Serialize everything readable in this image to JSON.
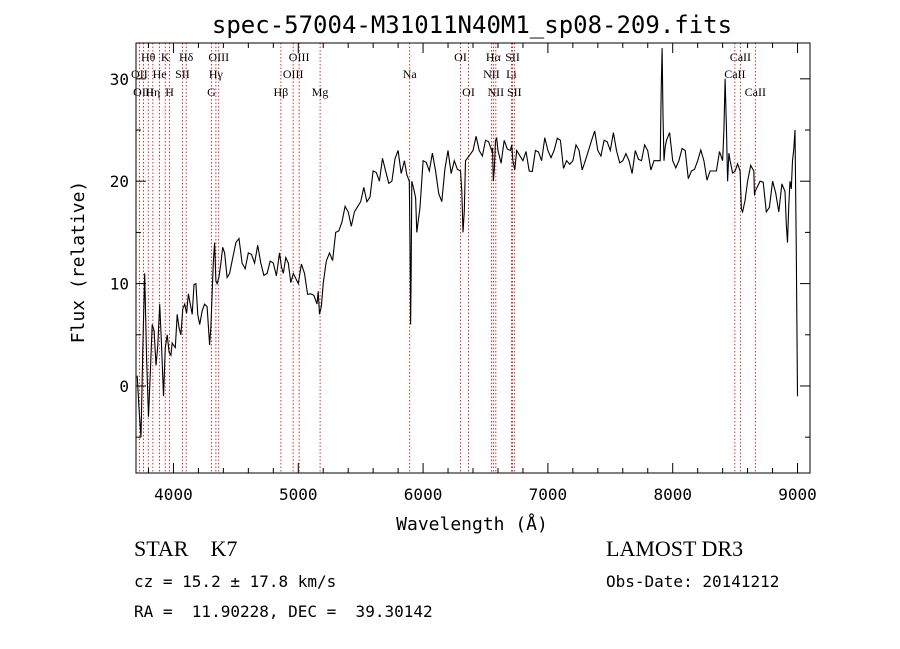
{
  "chart_data": {
    "type": "line",
    "title": "spec-57004-M31011N40M1_sp08-209.fits",
    "xlabel": "Wavelength (Å)",
    "ylabel": "Flux (relative)",
    "xlim": [
      3700,
      9100
    ],
    "ylim": [
      -8.5,
      33.5
    ],
    "x_ticks": [
      4000,
      5000,
      6000,
      7000,
      8000,
      9000
    ],
    "y_ticks": [
      0,
      10,
      20,
      30
    ],
    "grid": false,
    "line_color": "#000000",
    "marker_color": "#cc0000",
    "spectrum": {
      "x": [
        3710,
        3740,
        3770,
        3800,
        3830,
        3860,
        3890,
        3920,
        3950,
        3980,
        4000,
        4030,
        4060,
        4090,
        4120,
        4150,
        4180,
        4210,
        4250,
        4290,
        4310,
        4330,
        4350,
        4380,
        4410,
        4450,
        4500,
        4550,
        4600,
        4650,
        4700,
        4750,
        4800,
        4850,
        4880,
        4920,
        4960,
        5000,
        5050,
        5100,
        5150,
        5170,
        5200,
        5250,
        5300,
        5350,
        5400,
        5450,
        5500,
        5550,
        5600,
        5650,
        5700,
        5750,
        5800,
        5850,
        5890,
        5900,
        5910,
        5930,
        5950,
        6000,
        6050,
        6100,
        6150,
        6200,
        6250,
        6300,
        6320,
        6340,
        6400,
        6450,
        6500,
        6550,
        6563,
        6580,
        6600,
        6650,
        6700,
        6720,
        6750,
        6800,
        6850,
        6900,
        6950,
        7000,
        7050,
        7100,
        7150,
        7200,
        7250,
        7300,
        7350,
        7400,
        7450,
        7500,
        7550,
        7600,
        7650,
        7700,
        7750,
        7800,
        7850,
        7900,
        7915,
        7930,
        7950,
        8000,
        8050,
        8100,
        8150,
        8200,
        8250,
        8300,
        8350,
        8400,
        8420,
        8440,
        8460,
        8500,
        8540,
        8560,
        8600,
        8650,
        8660,
        8700,
        8750,
        8800,
        8850,
        8900,
        8920,
        8940,
        8960,
        8980,
        9000
      ],
      "y": [
        1,
        -5,
        11,
        -3,
        6,
        2,
        8,
        -1,
        5,
        3,
        4,
        7,
        5,
        8,
        9,
        7,
        10,
        6,
        8,
        4,
        9,
        14,
        10,
        12,
        13,
        11,
        14,
        12,
        13,
        12,
        12,
        11,
        12,
        13,
        11,
        12,
        11,
        10,
        11,
        9,
        8,
        7,
        10,
        13,
        15,
        16,
        17,
        17,
        18,
        18,
        21,
        20,
        21,
        20,
        23,
        22,
        20,
        6,
        20,
        19,
        15,
        22,
        21,
        21,
        18,
        23,
        22,
        21,
        15,
        22,
        23,
        23,
        24,
        23,
        20,
        24,
        23,
        24,
        23,
        22,
        23,
        22,
        21,
        23,
        22,
        23,
        23,
        24,
        22,
        22,
        23,
        22,
        24,
        23,
        24,
        23,
        23,
        22,
        22,
        23,
        22,
        23,
        22,
        22,
        33,
        22,
        24,
        22,
        22,
        23,
        21,
        22,
        22,
        21,
        21,
        22,
        30,
        20,
        22,
        21,
        21,
        17,
        20,
        21,
        19,
        20,
        17,
        20,
        17,
        19,
        14,
        20,
        22,
        25,
        -1
      ]
    },
    "lines": [
      {
        "name": "Hθ",
        "x": 3798,
        "row": 0
      },
      {
        "name": "K",
        "x": 3934,
        "row": 0
      },
      {
        "name": "Hδ",
        "x": 4102,
        "row": 0
      },
      {
        "name": "OIII",
        "x": 4363,
        "row": 0
      },
      {
        "name": "OIII",
        "x": 5007,
        "row": 0
      },
      {
        "name": "Na",
        "x": 5893,
        "row": 1
      },
      {
        "name": "OI",
        "x": 6300,
        "row": 0
      },
      {
        "name": "Hα",
        "x": 6563,
        "row": 0
      },
      {
        "name": "SII",
        "x": 6717,
        "row": 0
      },
      {
        "name": "CaII",
        "x": 8542,
        "row": 0
      },
      {
        "name": "OII",
        "x": 3727,
        "row": 1
      },
      {
        "name": "He",
        "x": 3889,
        "row": 1
      },
      {
        "name": "SII",
        "x": 4072,
        "row": 1
      },
      {
        "name": "Hγ",
        "x": 4340,
        "row": 1
      },
      {
        "name": "OIII",
        "x": 4959,
        "row": 1
      },
      {
        "name": "NII",
        "x": 6548,
        "row": 1
      },
      {
        "name": "Li",
        "x": 6708,
        "row": 1
      },
      {
        "name": "CaII",
        "x": 8498,
        "row": 1
      },
      {
        "name": "OIII",
        "x": 3760,
        "row": 2
      },
      {
        "name": "Hη",
        "x": 3835,
        "row": 2
      },
      {
        "name": "H",
        "x": 3969,
        "row": 2
      },
      {
        "name": "G",
        "x": 4305,
        "row": 2
      },
      {
        "name": "Hβ",
        "x": 4861,
        "row": 2
      },
      {
        "name": "Mg",
        "x": 5175,
        "row": 2
      },
      {
        "name": "OI",
        "x": 6364,
        "row": 2
      },
      {
        "name": "NII",
        "x": 6583,
        "row": 2
      },
      {
        "name": "SII",
        "x": 6731,
        "row": 2
      },
      {
        "name": "CaII",
        "x": 8662,
        "row": 2
      }
    ]
  },
  "info": {
    "object_class": "STAR    K7",
    "survey": "LAMOST DR3",
    "cz": "cz = 15.2 ± 17.8 km/s",
    "obs_date": "Obs-Date: 20141212",
    "radec": "RA =  11.90228, DEC =  39.30142"
  }
}
